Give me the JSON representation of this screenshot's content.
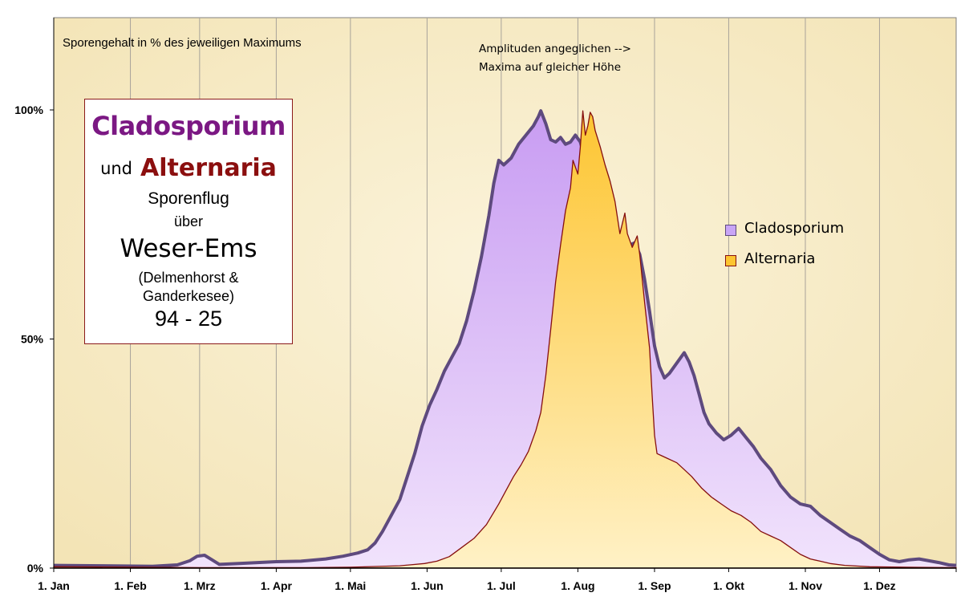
{
  "chart_data": {
    "type": "area",
    "title": "Sporengehalt in % des  jeweiligen Maximums",
    "annotation": [
      "Amplituden  angeglichen -->",
      "Maxima auf gleicher Höhe"
    ],
    "xlabel": "",
    "ylabel": "",
    "x_unit": "day of year",
    "xlim": [
      0,
      365
    ],
    "ylim": [
      0,
      120
    ],
    "yticks": [
      {
        "value": 0,
        "label": "0%"
      },
      {
        "value": 50,
        "label": "50%"
      },
      {
        "value": 100,
        "label": "100%"
      }
    ],
    "xticks": [
      {
        "value": 0,
        "label": "1. Jan"
      },
      {
        "value": 31,
        "label": "1. Feb"
      },
      {
        "value": 59,
        "label": "1. Mrz"
      },
      {
        "value": 90,
        "label": "1. Apr"
      },
      {
        "value": 120,
        "label": "1. Mai"
      },
      {
        "value": 151,
        "label": "1. Jun"
      },
      {
        "value": 181,
        "label": "1. Jul"
      },
      {
        "value": 212,
        "label": "1. Aug"
      },
      {
        "value": 243,
        "label": "1. Sep"
      },
      {
        "value": 273,
        "label": "1. Okt"
      },
      {
        "value": 304,
        "label": "1. Nov"
      },
      {
        "value": 334,
        "label": "1. Dez"
      }
    ],
    "grid": "vertical at month starts",
    "series": [
      {
        "name": "Cladosporium",
        "fill_top": "#c89cf2",
        "fill_bottom": "#f1e3fc",
        "line": "#5e4a7e",
        "points": [
          [
            0,
            0.6
          ],
          [
            20,
            0.5
          ],
          [
            40,
            0.4
          ],
          [
            50,
            0.7
          ],
          [
            55,
            1.6
          ],
          [
            58,
            2.6
          ],
          [
            61,
            2.8
          ],
          [
            64,
            1.8
          ],
          [
            67,
            0.8
          ],
          [
            75,
            1.0
          ],
          [
            90,
            1.4
          ],
          [
            100,
            1.5
          ],
          [
            110,
            2.0
          ],
          [
            117,
            2.6
          ],
          [
            123,
            3.3
          ],
          [
            127,
            4.0
          ],
          [
            130,
            5.5
          ],
          [
            133,
            8.0
          ],
          [
            136,
            11.0
          ],
          [
            140,
            15.0
          ],
          [
            143,
            20.0
          ],
          [
            146,
            25.0
          ],
          [
            149,
            31.0
          ],
          [
            152,
            35.5
          ],
          [
            155,
            39.0
          ],
          [
            158,
            43.0
          ],
          [
            161,
            46.0
          ],
          [
            164,
            49.0
          ],
          [
            167,
            54.0
          ],
          [
            170,
            60.5
          ],
          [
            173,
            68.0
          ],
          [
            176,
            77.0
          ],
          [
            178,
            84.0
          ],
          [
            180,
            89.0
          ],
          [
            182,
            88.0
          ],
          [
            185,
            89.5
          ],
          [
            188,
            92.5
          ],
          [
            191,
            94.5
          ],
          [
            194,
            96.5
          ],
          [
            196,
            98.5
          ],
          [
            197,
            99.8
          ],
          [
            199,
            97.0
          ],
          [
            201,
            93.5
          ],
          [
            203,
            93.0
          ],
          [
            205,
            94.0
          ],
          [
            207,
            92.5
          ],
          [
            209,
            93.0
          ],
          [
            211,
            94.5
          ],
          [
            213,
            93.0
          ],
          [
            215,
            89.0
          ],
          [
            217,
            84.5
          ],
          [
            219,
            83.5
          ],
          [
            221,
            79.0
          ],
          [
            223,
            73.0
          ],
          [
            225,
            69.0
          ],
          [
            227,
            67.5
          ],
          [
            229,
            69.0
          ],
          [
            231,
            71.0
          ],
          [
            233,
            70.5
          ],
          [
            235,
            71.0
          ],
          [
            237,
            68.5
          ],
          [
            239,
            63.0
          ],
          [
            241,
            56.0
          ],
          [
            243,
            48.5
          ],
          [
            245,
            44.0
          ],
          [
            247,
            41.5
          ],
          [
            249,
            42.5
          ],
          [
            251,
            44.0
          ],
          [
            253,
            45.5
          ],
          [
            255,
            47.0
          ],
          [
            257,
            45.0
          ],
          [
            259,
            42.0
          ],
          [
            261,
            38.0
          ],
          [
            263,
            34.0
          ],
          [
            265,
            31.5
          ],
          [
            268,
            29.5
          ],
          [
            271,
            28.0
          ],
          [
            274,
            29.0
          ],
          [
            277,
            30.5
          ],
          [
            280,
            28.5
          ],
          [
            283,
            26.5
          ],
          [
            286,
            24.0
          ],
          [
            290,
            21.5
          ],
          [
            294,
            18.0
          ],
          [
            298,
            15.5
          ],
          [
            302,
            14.0
          ],
          [
            306,
            13.5
          ],
          [
            310,
            11.5
          ],
          [
            314,
            10.0
          ],
          [
            318,
            8.5
          ],
          [
            322,
            7.0
          ],
          [
            326,
            6.0
          ],
          [
            330,
            4.5
          ],
          [
            334,
            3.0
          ],
          [
            338,
            1.8
          ],
          [
            342,
            1.4
          ],
          [
            346,
            1.8
          ],
          [
            350,
            2.0
          ],
          [
            354,
            1.6
          ],
          [
            358,
            1.2
          ],
          [
            362,
            0.7
          ],
          [
            365,
            0.6
          ]
        ]
      },
      {
        "name": "Alternaria",
        "fill_top": "#fdc531",
        "fill_bottom": "#fff1c6",
        "line": "#850f0f",
        "points": [
          [
            0,
            0.3
          ],
          [
            60,
            0.1
          ],
          [
            100,
            0.1
          ],
          [
            120,
            0.2
          ],
          [
            140,
            0.5
          ],
          [
            150,
            1.0
          ],
          [
            155,
            1.5
          ],
          [
            160,
            2.5
          ],
          [
            165,
            4.5
          ],
          [
            170,
            6.5
          ],
          [
            175,
            9.5
          ],
          [
            180,
            14.0
          ],
          [
            183,
            17.0
          ],
          [
            186,
            20.0
          ],
          [
            189,
            22.5
          ],
          [
            192,
            25.5
          ],
          [
            195,
            30.0
          ],
          [
            197,
            34.0
          ],
          [
            199,
            42.0
          ],
          [
            201,
            52.0
          ],
          [
            203,
            62.5
          ],
          [
            205,
            70.5
          ],
          [
            207,
            78.0
          ],
          [
            209,
            83.0
          ],
          [
            210,
            89.0
          ],
          [
            212,
            86.0
          ],
          [
            213,
            92.0
          ],
          [
            214,
            99.8
          ],
          [
            215,
            94.5
          ],
          [
            216,
            96.5
          ],
          [
            217,
            99.5
          ],
          [
            218,
            98.5
          ],
          [
            219,
            95.5
          ],
          [
            221,
            92.0
          ],
          [
            223,
            88.0
          ],
          [
            225,
            84.5
          ],
          [
            227,
            80.0
          ],
          [
            229,
            73.0
          ],
          [
            231,
            77.5
          ],
          [
            232,
            73.0
          ],
          [
            234,
            70.0
          ],
          [
            236,
            72.5
          ],
          [
            237,
            68.5
          ],
          [
            239,
            58.0
          ],
          [
            241,
            48.0
          ],
          [
            242,
            38.0
          ],
          [
            243,
            29.0
          ],
          [
            244,
            25.0
          ],
          [
            246,
            24.5
          ],
          [
            248,
            24.0
          ],
          [
            250,
            23.5
          ],
          [
            252,
            23.0
          ],
          [
            255,
            21.5
          ],
          [
            258,
            20.0
          ],
          [
            262,
            17.5
          ],
          [
            266,
            15.5
          ],
          [
            270,
            14.0
          ],
          [
            274,
            12.5
          ],
          [
            278,
            11.5
          ],
          [
            282,
            10.0
          ],
          [
            286,
            8.0
          ],
          [
            290,
            7.0
          ],
          [
            294,
            6.0
          ],
          [
            298,
            4.5
          ],
          [
            302,
            3.0
          ],
          [
            306,
            2.0
          ],
          [
            310,
            1.5
          ],
          [
            314,
            1.0
          ],
          [
            320,
            0.6
          ],
          [
            330,
            0.3
          ],
          [
            345,
            0.2
          ],
          [
            365,
            0.1
          ]
        ]
      }
    ]
  },
  "title_box": {
    "line1": "Cladosporium",
    "line2_und": "und",
    "line2_name": "Alternaria",
    "line3": "Sporenflug",
    "line4": "über",
    "line5": "Weser-Ems",
    "line6": "(Delmenhorst  &",
    "line7": "Ganderkesee)",
    "line8": "94 - 25"
  },
  "legend": {
    "items": [
      {
        "label": "Cladosporium",
        "color": "#c9a5f6",
        "border": "#5e4a7e"
      },
      {
        "label": "Alternaria",
        "color": "#fdc531",
        "border": "#850f0f"
      }
    ]
  }
}
